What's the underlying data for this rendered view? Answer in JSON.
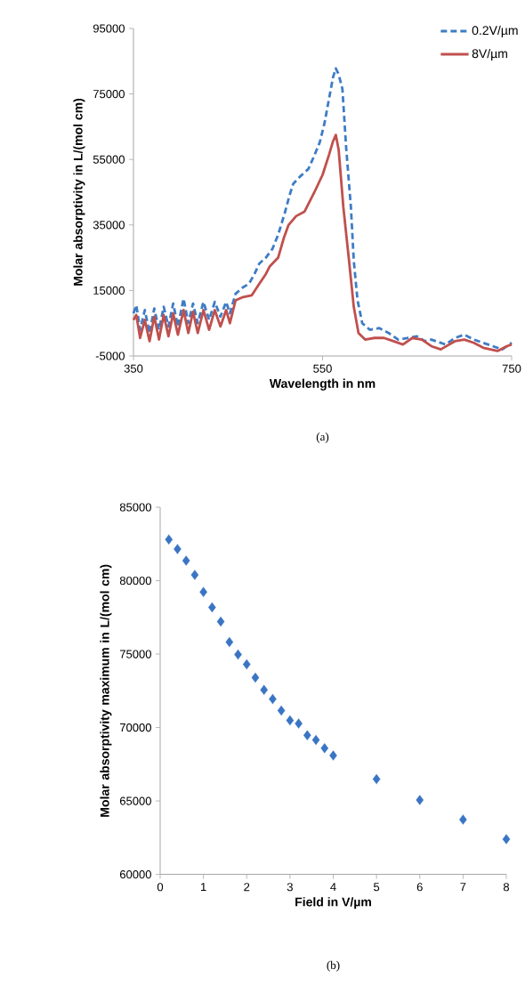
{
  "chart_data": [
    {
      "type": "line",
      "xlabel": "Wavelength in nm",
      "ylabel": "Molar absorptivity in L/(mol cm)",
      "annotations": [
        "(a)"
      ],
      "xlim": [
        350,
        750
      ],
      "xticks": [
        350,
        550,
        750
      ],
      "ylim": [
        -5000,
        95000
      ],
      "yticks": [
        -5000,
        15000,
        35000,
        55000,
        75000,
        95000
      ],
      "legend": "top right",
      "grid": false,
      "marker": "none",
      "series": [
        {
          "name": "0.2V/µm",
          "color": "#3e7cc6",
          "line_style": "dashed",
          "x": [
            350,
            353,
            357,
            362,
            367,
            372,
            377,
            382,
            387,
            392,
            397,
            403,
            408,
            413,
            418,
            424,
            430,
            436,
            442,
            448,
            452,
            458,
            466,
            472,
            478,
            483,
            490,
            497,
            503,
            510,
            515,
            519,
            527,
            535,
            541,
            547,
            552,
            557,
            561,
            564,
            567,
            571,
            575,
            580,
            583,
            587,
            592,
            600,
            610,
            620,
            630,
            640,
            650,
            658,
            665,
            680,
            690,
            700,
            710,
            720,
            730,
            740,
            750
          ],
          "values": [
            8000,
            10500,
            3000,
            9000,
            2000,
            9500,
            3000,
            10000,
            4000,
            11000,
            4000,
            12500,
            5000,
            11000,
            5000,
            11500,
            6000,
            11500,
            7000,
            11500,
            8000,
            14000,
            16000,
            17000,
            20000,
            23200,
            25000,
            27700,
            32000,
            38600,
            44000,
            47600,
            50000,
            52100,
            56000,
            60200,
            66000,
            73800,
            80000,
            82800,
            81000,
            76500,
            58400,
            40400,
            24100,
            12000,
            5000,
            3000,
            3500,
            2000,
            0,
            500,
            1000,
            -500,
            0,
            -1500,
            500,
            1500,
            0,
            -1000,
            -2000,
            -3000,
            -1000
          ]
        },
        {
          "name": "8V/µm",
          "color": "#c0504d",
          "line_style": "solid",
          "x": [
            350,
            353,
            357,
            362,
            367,
            372,
            377,
            382,
            387,
            392,
            397,
            403,
            408,
            413,
            418,
            424,
            430,
            436,
            442,
            448,
            452,
            458,
            466,
            475,
            483,
            490,
            494,
            503,
            509,
            514,
            522,
            531,
            541,
            550,
            557,
            561,
            564,
            567,
            572,
            578,
            583,
            588,
            595,
            605,
            615,
            625,
            635,
            645,
            655,
            665,
            675,
            690,
            700,
            710,
            720,
            735,
            745,
            750
          ],
          "values": [
            6000,
            7500,
            500,
            6000,
            -500,
            7000,
            0,
            7500,
            1000,
            8000,
            1500,
            9000,
            2000,
            8500,
            2000,
            9000,
            3000,
            9000,
            4000,
            9000,
            5000,
            12000,
            13000,
            13500,
            17000,
            20000,
            22300,
            25000,
            31000,
            35000,
            37700,
            39100,
            44800,
            50300,
            56600,
            60500,
            62500,
            58000,
            40400,
            24100,
            10000,
            2000,
            0,
            500,
            500,
            -500,
            -1500,
            500,
            0,
            -2000,
            -3000,
            -500,
            0,
            -1000,
            -2500,
            -3500,
            -2000,
            -1500
          ]
        }
      ]
    },
    {
      "type": "scatter",
      "xlabel": "Field in V/µm",
      "ylabel": "Molar absorptivity maximum in L/(mol cm)",
      "annotations": [
        "(b)"
      ],
      "xlim": [
        0,
        8
      ],
      "xticks": [
        0,
        1,
        2,
        3,
        4,
        5,
        6,
        7,
        8
      ],
      "ylim": [
        60000,
        85000
      ],
      "yticks": [
        60000,
        65000,
        70000,
        75000,
        80000,
        85000
      ],
      "grid": false,
      "marker": "diamond",
      "series": [
        {
          "color": "#3a75c4",
          "x": [
            0.2,
            0.4,
            0.6,
            0.8,
            1.0,
            1.2,
            1.4,
            1.6,
            1.8,
            2.0,
            2.2,
            2.4,
            2.6,
            2.8,
            3.0,
            3.2,
            3.4,
            3.6,
            3.8,
            4.0,
            5,
            6,
            7,
            8
          ],
          "values": [
            82800,
            82150,
            81360,
            80390,
            79230,
            78180,
            77210,
            75820,
            74970,
            74300,
            73400,
            72570,
            71940,
            71160,
            70490,
            70270,
            69480,
            69150,
            68590,
            68100,
            66490,
            65070,
            63730,
            62400
          ]
        }
      ]
    }
  ]
}
